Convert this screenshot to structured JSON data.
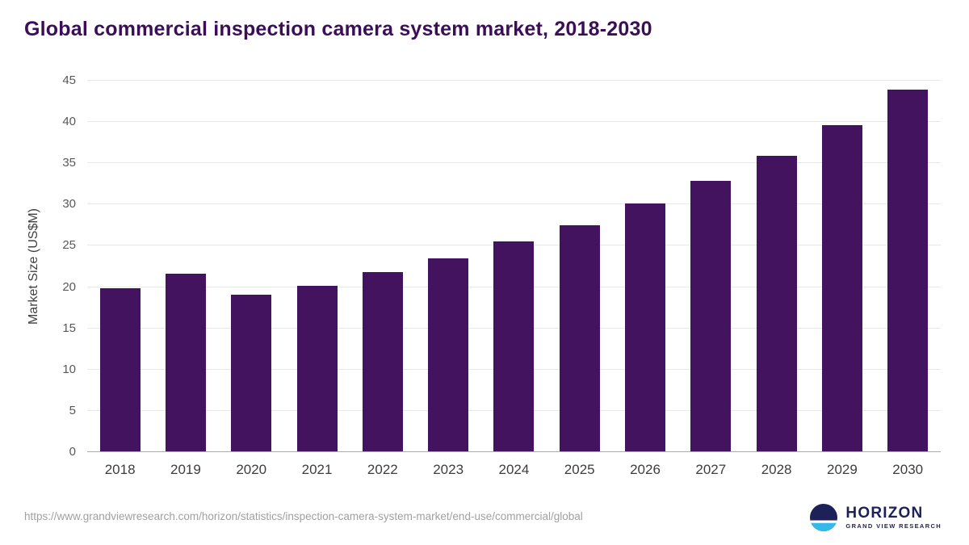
{
  "title": "Global commercial inspection camera system market, 2018-2030",
  "source_url": "https://www.grandviewresearch.com/horizon/statistics/inspection-camera-system-market/end-use/commercial/global",
  "logo": {
    "name": "HORIZON",
    "subtitle": "GRAND VIEW RESEARCH"
  },
  "colors": {
    "bar": "#44135f",
    "title": "#3b0e57",
    "grid": "#e8e8e8",
    "axis_line": "#ababab",
    "logo_navy": "#1e2158",
    "logo_cyan": "#35b9e9"
  },
  "chart_data": {
    "type": "bar",
    "categories": [
      "2018",
      "2019",
      "2020",
      "2021",
      "2022",
      "2023",
      "2024",
      "2025",
      "2026",
      "2027",
      "2028",
      "2029",
      "2030"
    ],
    "values": [
      19.9,
      21.6,
      19.1,
      20.2,
      21.8,
      23.5,
      25.5,
      27.5,
      30.1,
      32.9,
      35.9,
      39.6,
      43.9
    ],
    "title": "Global commercial inspection camera system market, 2018-2030",
    "xlabel": "",
    "ylabel": "Market Size (US$M)",
    "ylim": [
      0,
      45
    ],
    "ytick_step": 5,
    "grid": true,
    "legend": false
  }
}
